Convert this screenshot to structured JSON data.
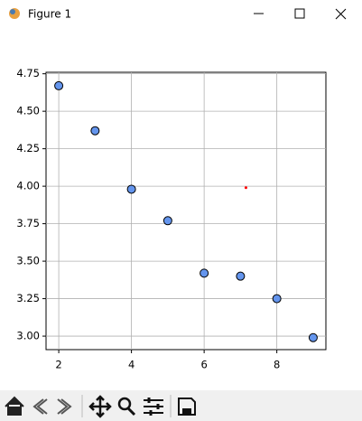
{
  "window": {
    "title": "Figure 1"
  },
  "chart_data": {
    "type": "scatter",
    "series": [
      {
        "color": "#6495ed",
        "x": [
          2,
          3,
          4,
          5,
          6,
          7,
          8,
          9
        ],
        "values": [
          4.67,
          4.37,
          3.98,
          3.77,
          3.42,
          3.4,
          3.25,
          2.99
        ]
      },
      {
        "color": "#ff0000",
        "x": [
          7.15
        ],
        "values": [
          3.99
        ]
      }
    ],
    "xlim": [
      1.65,
      9.35
    ],
    "ylim": [
      2.91,
      4.76
    ],
    "xticks": [
      2,
      4,
      6,
      8
    ],
    "yticks": [
      {
        "value": 3,
        "label": "3.00"
      },
      3.25,
      {
        "value": 3.5,
        "label": "3.50"
      },
      3.75,
      {
        "value": 4,
        "label": "4.00"
      },
      4.25,
      {
        "value": 4.5,
        "label": "4.50"
      },
      4.75
    ],
    "grid": true
  }
}
